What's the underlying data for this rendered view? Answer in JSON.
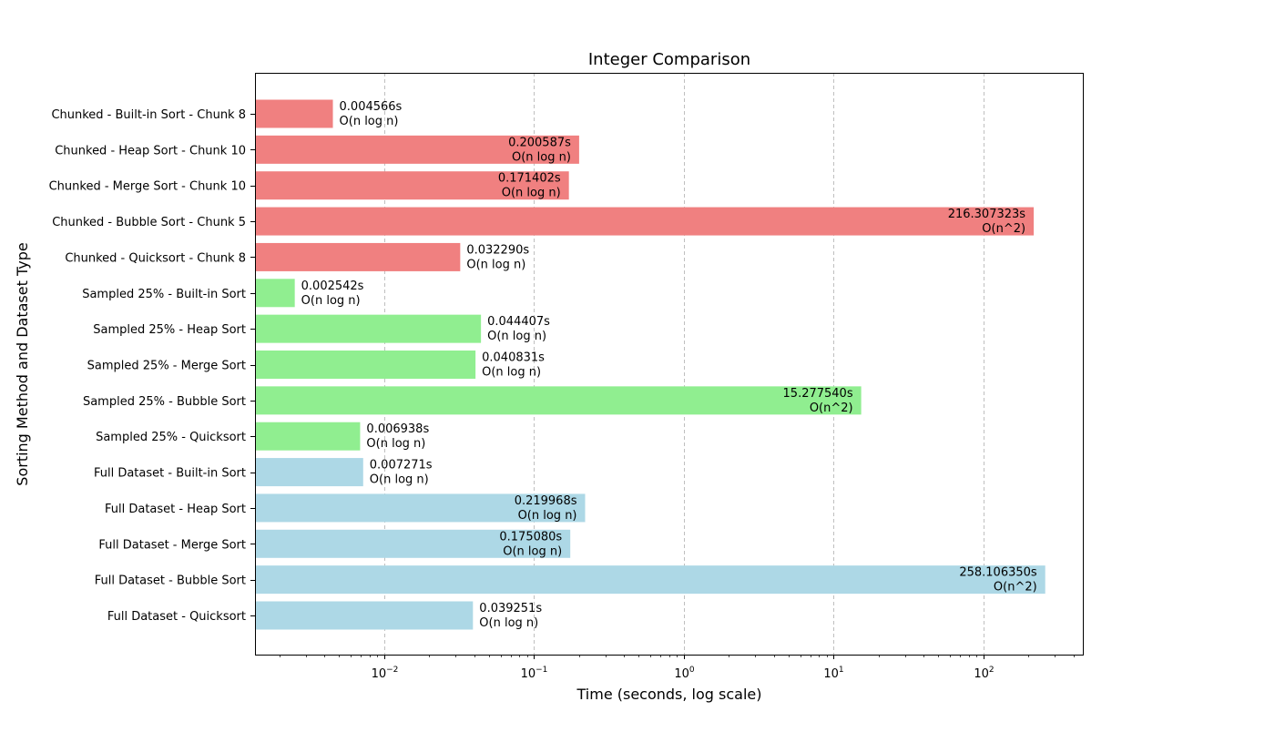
{
  "chart_data": {
    "type": "bar",
    "orientation": "horizontal",
    "title": "Integer Comparison",
    "xlabel": "Time (seconds, log scale)",
    "ylabel": "Sorting Method and Dataset Type",
    "x_scale": "log",
    "xlim": [
      0.00138,
      460
    ],
    "x_ticks": [
      {
        "base": "10",
        "exp": "−2",
        "value": 0.01
      },
      {
        "base": "10",
        "exp": "−1",
        "value": 0.1
      },
      {
        "base": "10",
        "exp": "0",
        "value": 1
      },
      {
        "base": "10",
        "exp": "1",
        "value": 10
      },
      {
        "base": "10",
        "exp": "2",
        "value": 100
      }
    ],
    "grid": "x-major-dashed",
    "group_colors": {
      "chunked": "#f08080",
      "sampled": "#90ee90",
      "full": "#add8e6"
    },
    "bars": [
      {
        "category": "Chunked - Built-in Sort - Chunk 8",
        "value": 0.004566,
        "time_label": "0.004566s",
        "complexity": "O(n log n)",
        "group": "chunked"
      },
      {
        "category": "Chunked - Heap Sort - Chunk 10",
        "value": 0.200587,
        "time_label": "0.200587s",
        "complexity": "O(n log n)",
        "group": "chunked"
      },
      {
        "category": "Chunked - Merge Sort - Chunk 10",
        "value": 0.171402,
        "time_label": "0.171402s",
        "complexity": "O(n log n)",
        "group": "chunked"
      },
      {
        "category": "Chunked - Bubble Sort - Chunk 5",
        "value": 216.307323,
        "time_label": "216.307323s",
        "complexity": "O(n^2)",
        "group": "chunked"
      },
      {
        "category": "Chunked - Quicksort - Chunk 8",
        "value": 0.03229,
        "time_label": "0.032290s",
        "complexity": "O(n log n)",
        "group": "chunked"
      },
      {
        "category": "Sampled 25% - Built-in Sort",
        "value": 0.002542,
        "time_label": "0.002542s",
        "complexity": "O(n log n)",
        "group": "sampled"
      },
      {
        "category": "Sampled 25% - Heap Sort",
        "value": 0.044407,
        "time_label": "0.044407s",
        "complexity": "O(n log n)",
        "group": "sampled"
      },
      {
        "category": "Sampled 25% - Merge Sort",
        "value": 0.040831,
        "time_label": "0.040831s",
        "complexity": "O(n log n)",
        "group": "sampled"
      },
      {
        "category": "Sampled 25% - Bubble Sort",
        "value": 15.27754,
        "time_label": "15.277540s",
        "complexity": "O(n^2)",
        "group": "sampled"
      },
      {
        "category": "Sampled 25% - Quicksort",
        "value": 0.006938,
        "time_label": "0.006938s",
        "complexity": "O(n log n)",
        "group": "sampled"
      },
      {
        "category": "Full Dataset - Built-in Sort",
        "value": 0.007271,
        "time_label": "0.007271s",
        "complexity": "O(n log n)",
        "group": "full"
      },
      {
        "category": "Full Dataset - Heap Sort",
        "value": 0.219968,
        "time_label": "0.219968s",
        "complexity": "O(n log n)",
        "group": "full"
      },
      {
        "category": "Full Dataset - Merge Sort",
        "value": 0.17508,
        "time_label": "0.175080s",
        "complexity": "O(n log n)",
        "group": "full"
      },
      {
        "category": "Full Dataset - Bubble Sort",
        "value": 258.10635,
        "time_label": "258.106350s",
        "complexity": "O(n^2)",
        "group": "full"
      },
      {
        "category": "Full Dataset - Quicksort",
        "value": 0.039251,
        "time_label": "0.039251s",
        "complexity": "O(n log n)",
        "group": "full"
      }
    ]
  }
}
